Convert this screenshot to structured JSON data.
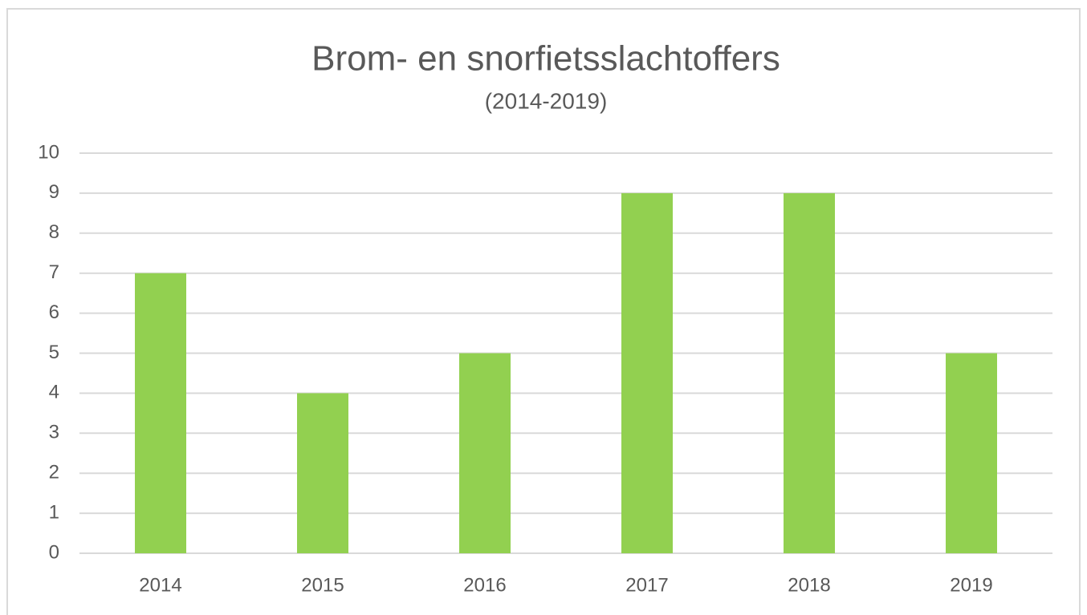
{
  "chart_data": {
    "type": "bar",
    "title": "Brom- en snorfietsslachtoffers",
    "subtitle": "(2014-2019)",
    "categories": [
      "2014",
      "2015",
      "2016",
      "2017",
      "2018",
      "2019"
    ],
    "values": [
      7,
      4,
      5,
      9,
      9,
      5
    ],
    "color": "#92d050",
    "ylim": [
      0,
      10
    ],
    "yticks": [
      0,
      1,
      2,
      3,
      4,
      5,
      6,
      7,
      8,
      9,
      10
    ],
    "grid": true
  }
}
